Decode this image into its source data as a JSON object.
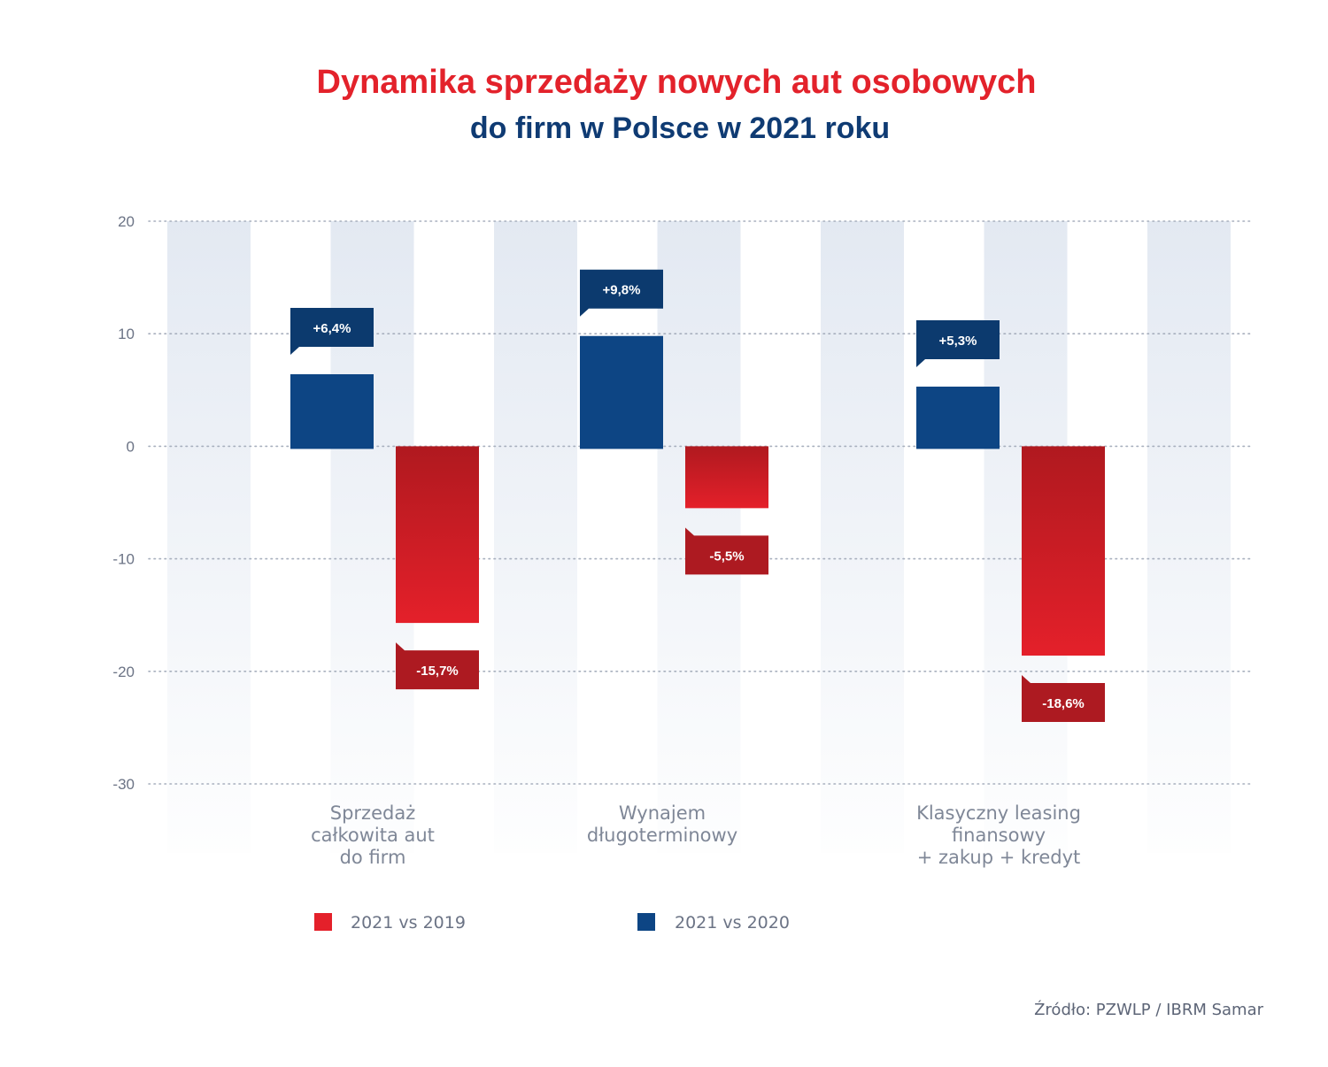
{
  "colors": {
    "title_red": "#e3222b",
    "title_blue": "#0f3b73",
    "series_red_top": "#b0191f",
    "series_red_bottom": "#e4202a",
    "series_blue": "#0d4584",
    "label_blue": "#0c3a6e",
    "label_red": "#ad1a21",
    "band": "#e3e9f2",
    "grid": "#a7afbd"
  },
  "chart_data": {
    "type": "bar",
    "title": "Dynamika sprzedaży nowych aut osobowych",
    "subtitle": "do firm w Polsce w 2021 roku",
    "categories": [
      [
        "Sprzedaż",
        "całkowita aut",
        "do firm"
      ],
      [
        "Wynajem",
        "długoterminowy"
      ],
      [
        "Klasyczny leasing",
        "finansowy",
        "+ zakup + kredyt"
      ]
    ],
    "series": [
      {
        "name": "2021 vs 2020",
        "color": "#0d4584",
        "values": [
          6.4,
          9.8,
          5.3
        ],
        "labels": [
          "+6,4%",
          "+9,8%",
          "+5,3%"
        ]
      },
      {
        "name": "2021 vs 2019",
        "color": "#e4202a",
        "values": [
          -15.7,
          -5.5,
          -18.6
        ],
        "labels": [
          "-15,7%",
          "-5,5%",
          "-18,6%"
        ]
      }
    ],
    "yticks": [
      20,
      10,
      0,
      -10,
      -20,
      -30
    ],
    "ylim": [
      -30,
      20
    ],
    "legend": [
      {
        "name": "2021 vs 2019",
        "color": "#e4202a"
      },
      {
        "name": "2021 vs 2020",
        "color": "#0d4584"
      }
    ],
    "legend_position": "bottom-left",
    "grid": true,
    "xlabel": "",
    "ylabel": ""
  },
  "source": "Źródło: PZWLP / IBRM Samar"
}
